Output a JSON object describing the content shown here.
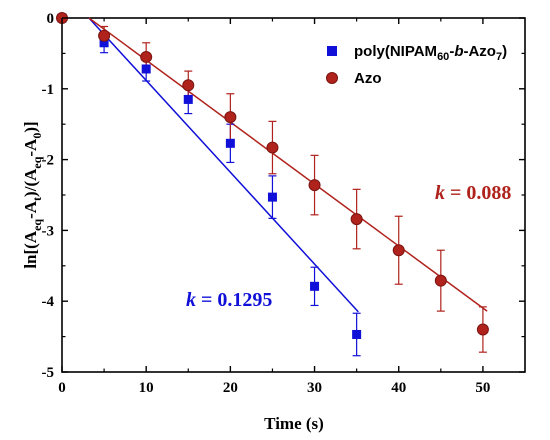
{
  "chart_data": {
    "type": "scatter",
    "xlabel": "Time (s)",
    "ylabel": "ln[(Aeq-At)/(Aeq-A0)]",
    "xlim": [
      0,
      55
    ],
    "ylim": [
      -5,
      0
    ],
    "x_ticks": [
      0,
      10,
      20,
      30,
      40,
      50
    ],
    "y_ticks": [
      0,
      -1,
      -2,
      -3,
      -4,
      -5
    ],
    "x_tick_labels": [
      "0",
      "10",
      "20",
      "30",
      "40",
      "50"
    ],
    "y_tick_labels": [
      "0",
      "-1",
      "-2",
      "-3",
      "-4",
      "-5"
    ],
    "legend_position": "top-right",
    "series": [
      {
        "name": "poly(NIPAM60-b-Azo7)",
        "marker": "square",
        "color": "#1010d8",
        "x": [
          0,
          5,
          10,
          15,
          20,
          25,
          30,
          35
        ],
        "y": [
          0,
          -0.35,
          -0.72,
          -1.15,
          -1.77,
          -2.53,
          -3.79,
          -4.47
        ],
        "err": [
          0.0,
          0.14,
          0.17,
          0.2,
          0.27,
          0.3,
          0.27,
          0.3
        ],
        "fit": {
          "x": [
            3.2,
            35.2
          ],
          "y": [
            0,
            -4.15
          ]
        }
      },
      {
        "name": "Azo",
        "marker": "circle",
        "color": "#b0221c",
        "x": [
          0,
          5,
          10,
          15,
          20,
          25,
          30,
          35,
          40,
          45,
          50
        ],
        "y": [
          0,
          -0.25,
          -0.55,
          -0.95,
          -1.4,
          -1.83,
          -2.36,
          -2.84,
          -3.28,
          -3.71,
          -4.4
        ],
        "err": [
          0.0,
          0.13,
          0.2,
          0.2,
          0.33,
          0.37,
          0.42,
          0.42,
          0.48,
          0.43,
          0.32
        ],
        "fit": {
          "x": [
            3.2,
            50.5
          ],
          "y": [
            0,
            -4.14
          ]
        }
      }
    ],
    "annotations": [
      {
        "text": "0.1295",
        "series": 0
      },
      {
        "text": "0.088",
        "series": 1
      }
    ]
  },
  "legend": {
    "s1_main": "poly(NIPAM",
    "s1_sub1": "60",
    "s1_dash": "-",
    "s1_b": "b",
    "s1_azo": "-Azo",
    "s1_sub2": "7",
    "s1_close": ")",
    "s2": "Azo"
  },
  "annotation_text": {
    "k_symbol": "k",
    "eq": " = ",
    "blue_value": "0.1295",
    "red_value": "0.088"
  },
  "ylabel_parts": {
    "a": "ln[(A",
    "eq1": "eq",
    "b": "-A",
    "t": "t",
    "c": ")/(A",
    "eq2": "eq",
    "d": "-A",
    "zero": "0",
    "e": ")]"
  }
}
